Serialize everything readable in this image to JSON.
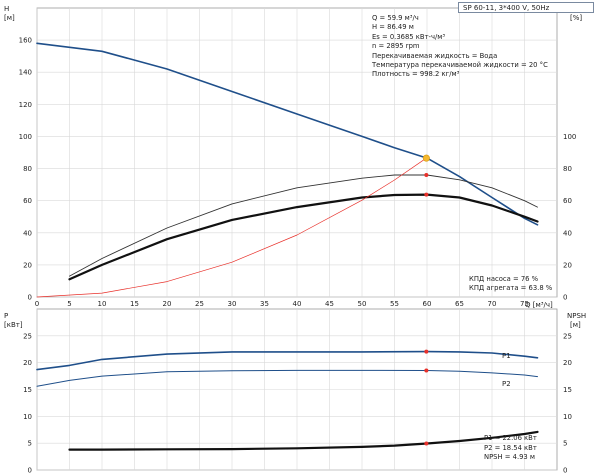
{
  "title_box": "SP 60-11, 3*400 V, 50Hz",
  "info": {
    "lines": [
      "Q = 59.9 м³/ч",
      "H = 86.49 м",
      "Es = 0.3685 кВт-ч/м³",
      "n = 2895 rpm",
      "Перекачиваемая жидкость = Вода",
      "Температура перекачиваемой жидкости = 20 °C",
      "Плотность = 998.2 кг/м³"
    ]
  },
  "efficiency_legend": [
    "КПД насоса = 76 %",
    "КПД агрегата = 63.8 %"
  ],
  "power_legend": [
    "P1 = 22.06 кВт",
    "P2 = 18.54 кВт",
    "NPSH = 4.93 м"
  ],
  "colors": {
    "blue": "#1f4f8a",
    "red": "#e8302a",
    "orange": "#f5b82e",
    "grid": "#d9d9d9"
  },
  "chart_data": [
    {
      "type": "line",
      "name": "top-panel",
      "x_axis": {
        "label": "Q [м³/ч]",
        "ticks": [
          0,
          5,
          10,
          15,
          20,
          25,
          30,
          35,
          40,
          45,
          50,
          55,
          60,
          65,
          70,
          75
        ],
        "range": [
          0,
          80
        ]
      },
      "y_left": {
        "label_line1": "H",
        "label_line2": "[м]",
        "ticks": [
          0,
          20,
          40,
          60,
          80,
          100,
          120,
          140,
          160
        ],
        "range": [
          0,
          180
        ]
      },
      "y_right": {
        "label_line1": "eta",
        "label_line2": "[%]",
        "ticks": [
          0,
          20,
          40,
          60,
          80,
          100
        ],
        "range": [
          0,
          180
        ]
      },
      "grid": true,
      "series": [
        {
          "id": "H",
          "color": "#1f4f8a",
          "width": 1.6,
          "x": [
            0,
            10,
            20,
            30,
            40,
            50,
            55,
            60,
            65,
            70,
            75,
            77
          ],
          "y": [
            158,
            153,
            142,
            128,
            114,
            100,
            93,
            86.5,
            75,
            62,
            49,
            45
          ]
        },
        {
          "id": "eta_pump",
          "color": "#333333",
          "width": 0.9,
          "x": [
            5,
            10,
            20,
            30,
            40,
            50,
            55,
            60,
            65,
            70,
            75,
            77
          ],
          "y": [
            13,
            24,
            43,
            58,
            68,
            74,
            76,
            76,
            73,
            68,
            60,
            56
          ]
        },
        {
          "id": "eta_unit",
          "color": "#111111",
          "width": 2.2,
          "x": [
            5,
            10,
            20,
            30,
            40,
            50,
            55,
            60,
            65,
            70,
            75,
            77
          ],
          "y": [
            11,
            20,
            36,
            48,
            56,
            62,
            63.5,
            63.8,
            62,
            57,
            50,
            47
          ]
        },
        {
          "id": "system",
          "color": "#e8302a",
          "width": 0.7,
          "x": [
            0,
            10,
            20,
            30,
            40,
            50,
            55,
            59.9
          ],
          "y": [
            0,
            2.4,
            9.6,
            21.7,
            38.6,
            60.3,
            72.9,
            86.5
          ]
        }
      ],
      "markers": [
        {
          "x": 59.9,
          "y": 86.5,
          "color": "#f5b82e",
          "r": 3.2
        },
        {
          "x": 59.9,
          "y": 76,
          "color": "#e8302a",
          "r": 2
        },
        {
          "x": 59.9,
          "y": 63.8,
          "color": "#e8302a",
          "r": 2
        }
      ]
    },
    {
      "type": "line",
      "name": "bottom-panel",
      "x_axis": {
        "ticks": [
          0,
          5,
          10,
          15,
          20,
          25,
          30,
          35,
          40,
          45,
          50,
          55,
          60,
          65,
          70,
          75
        ],
        "range": [
          0,
          80
        ]
      },
      "y_left": {
        "label_line1": "P",
        "label_line2": "[кВт]",
        "ticks": [
          0,
          5,
          10,
          15,
          20,
          25
        ],
        "range": [
          0,
          30
        ]
      },
      "y_right": {
        "label_line1": "NPSH",
        "label_line2": "[м]",
        "ticks": [
          0,
          5,
          10,
          15,
          20,
          25
        ],
        "range": [
          0,
          30
        ]
      },
      "grid": true,
      "series": [
        {
          "id": "P1",
          "label": "P1",
          "color": "#1f4f8a",
          "width": 1.6,
          "x": [
            0,
            5,
            10,
            20,
            30,
            40,
            50,
            60,
            65,
            70,
            75,
            77
          ],
          "y": [
            18.7,
            19.5,
            20.6,
            21.6,
            22.0,
            22.0,
            22.0,
            22.06,
            22.0,
            21.8,
            21.2,
            20.9
          ]
        },
        {
          "id": "P2",
          "label": "P2",
          "color": "#1f4f8a",
          "width": 1.0,
          "x": [
            0,
            5,
            10,
            20,
            30,
            40,
            50,
            60,
            65,
            70,
            75,
            77
          ],
          "y": [
            15.6,
            16.7,
            17.5,
            18.3,
            18.5,
            18.55,
            18.55,
            18.54,
            18.4,
            18.1,
            17.7,
            17.4
          ]
        },
        {
          "id": "NPSH",
          "color": "#111111",
          "width": 2.2,
          "x": [
            5,
            10,
            20,
            30,
            40,
            50,
            55,
            60,
            65,
            70,
            75,
            77
          ],
          "y": [
            3.8,
            3.8,
            3.85,
            3.9,
            4.05,
            4.3,
            4.55,
            4.93,
            5.4,
            6.0,
            6.7,
            7.1
          ]
        }
      ],
      "markers": [
        {
          "x": 59.9,
          "y": 22.06,
          "color": "#e8302a",
          "r": 2
        },
        {
          "x": 59.9,
          "y": 18.54,
          "color": "#e8302a",
          "r": 2
        },
        {
          "x": 59.9,
          "y": 4.93,
          "color": "#e8302a",
          "r": 2
        }
      ]
    }
  ]
}
